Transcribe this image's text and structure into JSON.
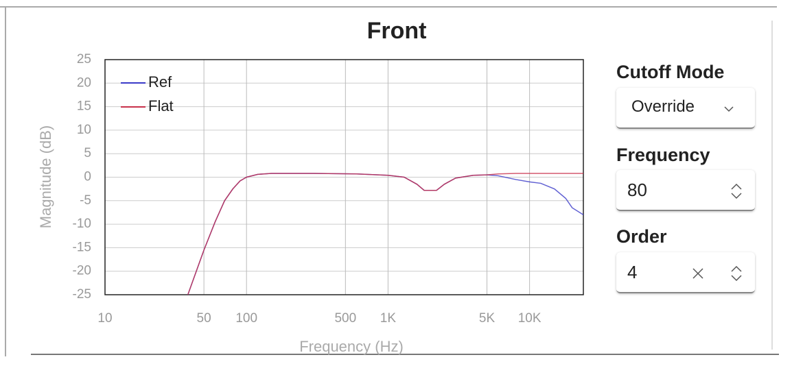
{
  "chart_data": {
    "type": "line",
    "title": "Front",
    "xlabel": "Frequency (Hz)",
    "ylabel": "Magnitude (dB)",
    "xscale": "log",
    "grid": true,
    "legend": "upper left",
    "xlim": [
      10,
      24000
    ],
    "ylim": [
      -25,
      25
    ],
    "xticks": [
      10,
      50,
      100,
      500,
      {
        "value": 1000,
        "label": "1K"
      },
      {
        "value": 5000,
        "label": "5K"
      },
      {
        "value": 10000,
        "label": "10K"
      }
    ],
    "yticks": [
      -25,
      -20,
      -15,
      -10,
      -5,
      0,
      5,
      10,
      15,
      20,
      25
    ],
    "x": [
      38.5,
      50,
      60,
      70,
      80,
      90,
      100,
      120,
      150,
      300,
      600,
      1000,
      1300,
      1600,
      1800,
      2200,
      2500,
      3000,
      4000,
      5000,
      6000,
      8000,
      10000,
      12000,
      15000,
      18000,
      20000,
      24000
    ],
    "series": [
      {
        "name": "Ref",
        "color": "#3a3ac8",
        "values": [
          -25,
          -15.5,
          -9.5,
          -5,
          -2.5,
          -0.8,
          0,
          0.6,
          0.8,
          0.8,
          0.7,
          0.4,
          0,
          -1.5,
          -2.8,
          -2.8,
          -1.5,
          -0.2,
          0.4,
          0.5,
          0.3,
          -0.5,
          -1,
          -1.3,
          -2.5,
          -4.5,
          -6.5,
          -8
        ]
      },
      {
        "name": "Flat",
        "color": "#c8304a",
        "values": [
          -25,
          -15.5,
          -9.5,
          -5,
          -2.5,
          -0.8,
          0,
          0.6,
          0.8,
          0.8,
          0.7,
          0.4,
          0,
          -1.5,
          -2.8,
          -2.8,
          -1.5,
          -0.2,
          0.4,
          0.5,
          0.7,
          0.8,
          0.8,
          0.8,
          0.8,
          0.8,
          0.8,
          0.8
        ]
      }
    ]
  },
  "controls": {
    "cutoff_mode": {
      "label": "Cutoff Mode",
      "value": "Override"
    },
    "frequency": {
      "label": "Frequency",
      "value": 80
    },
    "order": {
      "label": "Order",
      "value": 4
    }
  }
}
